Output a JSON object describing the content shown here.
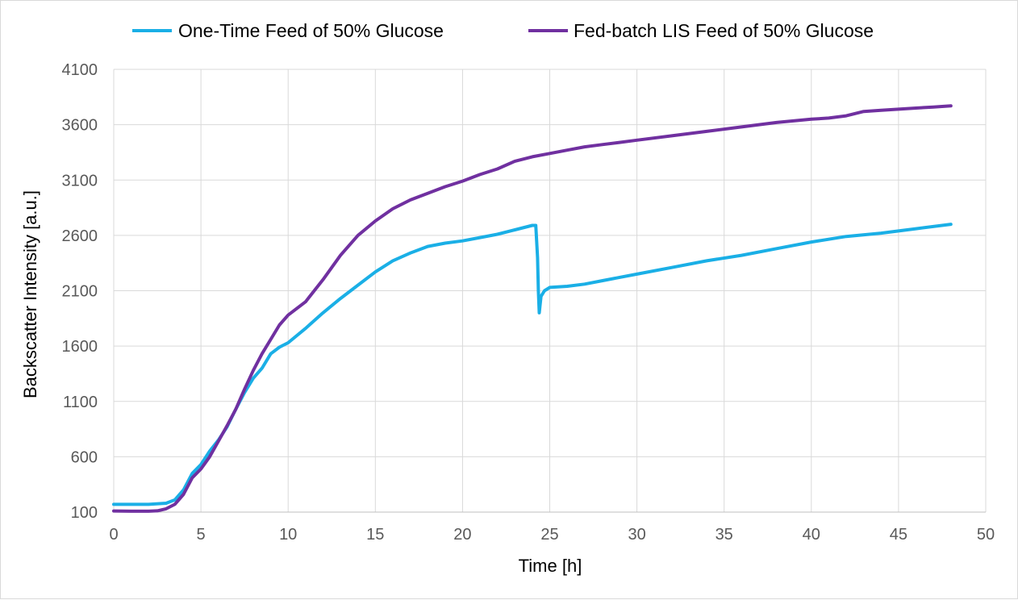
{
  "chart_data": {
    "type": "line",
    "title": "",
    "xlabel": "Time [h]",
    "ylabel": "Backscatter Intensity [a.u.]",
    "xlim": [
      0,
      50
    ],
    "ylim": [
      100,
      4100
    ],
    "xticks": [
      "0",
      "5",
      "10",
      "15",
      "20",
      "25",
      "30",
      "35",
      "40",
      "45",
      "50"
    ],
    "yticks": [
      "100",
      "600",
      "1100",
      "1600",
      "2100",
      "2600",
      "3100",
      "3600",
      "4100"
    ],
    "grid": true,
    "legend_position": "top",
    "series": [
      {
        "name": "One-Time Feed of 50% Glucose",
        "color": "#1AAFE6",
        "x": [
          0,
          1,
          2,
          3,
          3.5,
          4,
          4.5,
          5,
          5.5,
          6,
          6.5,
          7,
          7.5,
          8,
          8.5,
          9,
          9.5,
          10,
          11,
          12,
          13,
          14,
          15,
          16,
          17,
          18,
          19,
          20,
          21,
          22,
          23,
          24,
          24.2,
          24.3,
          24.35,
          24.4,
          24.5,
          24.7,
          25,
          26,
          27,
          28,
          30,
          32,
          34,
          36,
          38,
          40,
          42,
          44,
          46,
          48
        ],
        "y": [
          170,
          170,
          170,
          180,
          210,
          300,
          450,
          530,
          650,
          750,
          870,
          1030,
          1180,
          1310,
          1400,
          1530,
          1590,
          1630,
          1760,
          1900,
          2030,
          2150,
          2270,
          2370,
          2440,
          2500,
          2530,
          2550,
          2580,
          2610,
          2650,
          2690,
          2690,
          2400,
          2100,
          1900,
          2050,
          2100,
          2130,
          2140,
          2160,
          2190,
          2250,
          2310,
          2370,
          2420,
          2480,
          2540,
          2590,
          2620,
          2660,
          2700
        ]
      },
      {
        "name": "Fed-batch LIS Feed of 50% Glucose",
        "color": "#7030A0",
        "x": [
          0,
          1,
          2,
          2.5,
          3,
          3.5,
          4,
          4.5,
          5,
          5.5,
          6,
          6.5,
          7,
          7.5,
          8,
          8.5,
          9,
          9.5,
          10,
          11,
          12,
          13,
          14,
          15,
          16,
          17,
          18,
          19,
          20,
          21,
          22,
          23,
          24,
          25,
          26,
          27,
          28,
          29,
          30,
          32,
          34,
          36,
          38,
          40,
          41,
          42,
          43,
          44,
          45,
          46,
          47,
          48
        ],
        "y": [
          110,
          108,
          108,
          112,
          130,
          170,
          260,
          410,
          490,
          600,
          740,
          880,
          1030,
          1210,
          1380,
          1530,
          1660,
          1790,
          1880,
          2000,
          2200,
          2420,
          2600,
          2730,
          2840,
          2920,
          2980,
          3040,
          3090,
          3150,
          3200,
          3270,
          3310,
          3340,
          3370,
          3400,
          3420,
          3440,
          3460,
          3500,
          3540,
          3580,
          3620,
          3650,
          3660,
          3680,
          3720,
          3730,
          3740,
          3750,
          3760,
          3770
        ]
      }
    ]
  }
}
